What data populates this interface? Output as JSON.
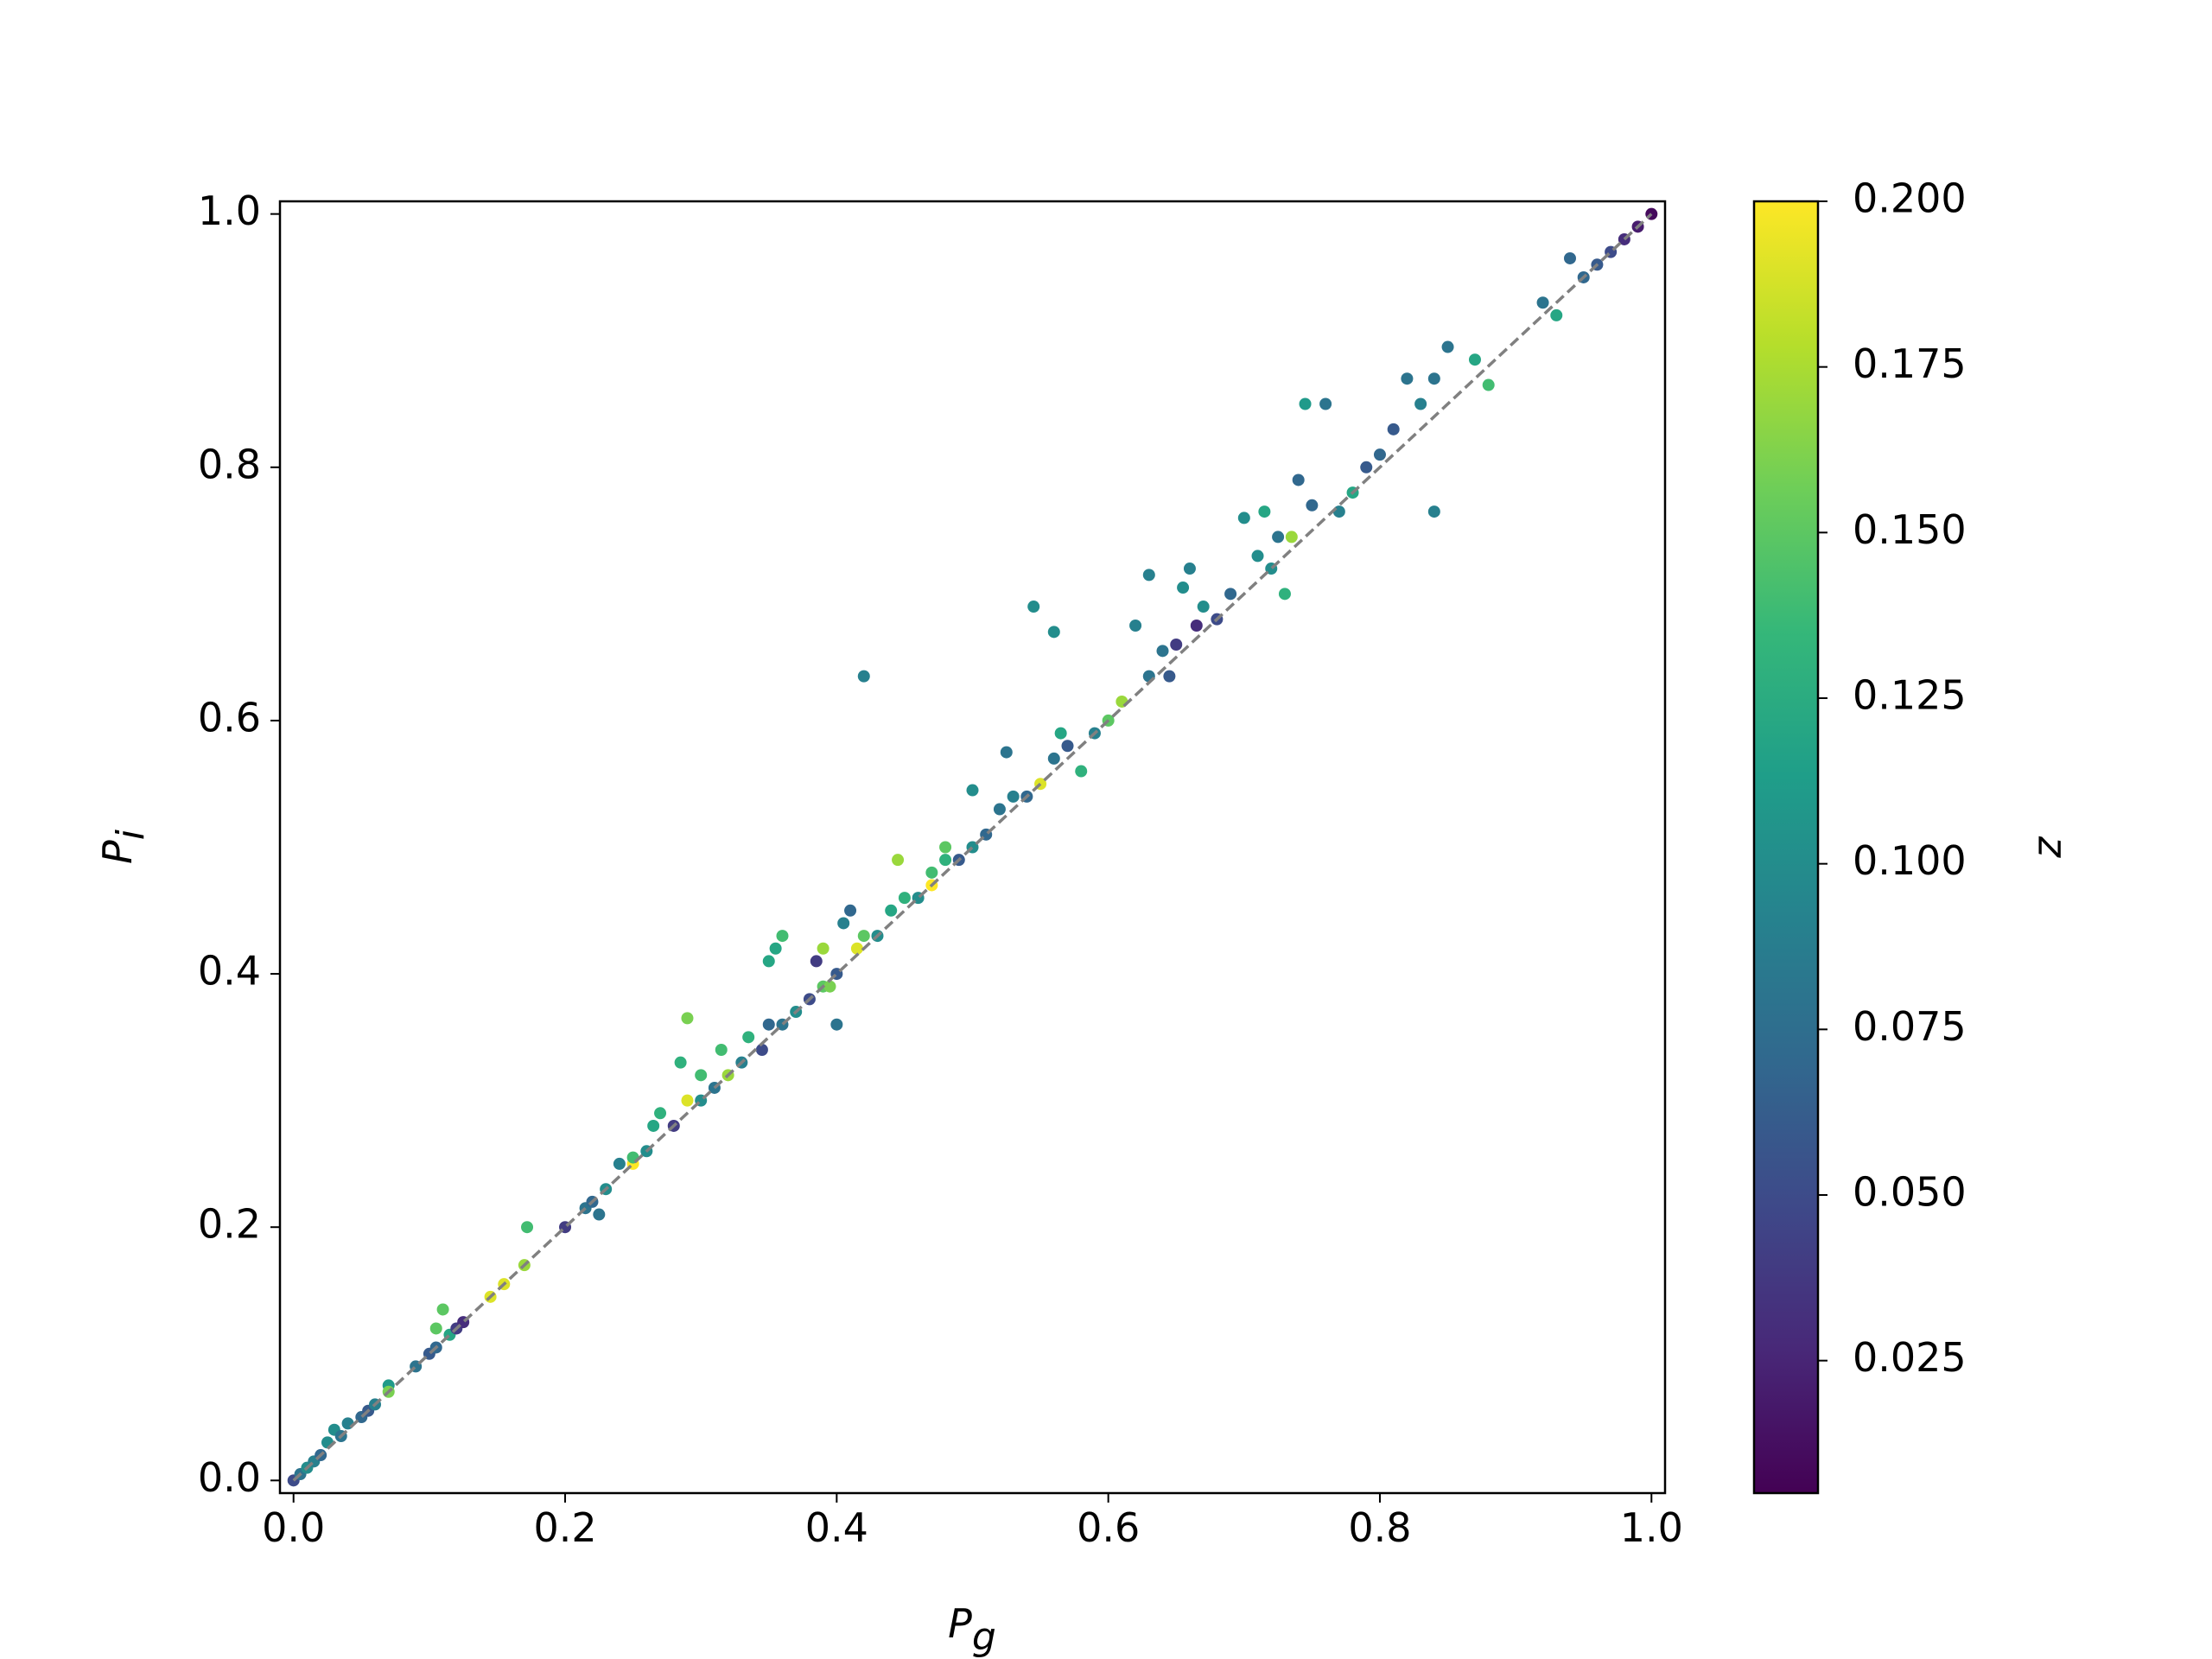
{
  "chart_data": {
    "type": "scatter",
    "xlabel": [
      "P",
      "g"
    ],
    "ylabel": [
      "P",
      "i"
    ],
    "colorbar_label": "z",
    "colormap": "viridis",
    "clim": [
      0.005,
      0.2
    ],
    "xlim": [
      -0.01,
      1.01
    ],
    "ylim": [
      -0.01,
      1.01
    ],
    "xticks": [
      {
        "value": 0,
        "label": "0.0"
      },
      0.2,
      0.4,
      0.6,
      0.8,
      {
        "value": 1,
        "label": "1.0"
      }
    ],
    "yticks": [
      {
        "value": 0,
        "label": "0.0"
      },
      0.2,
      0.4,
      0.6,
      0.8,
      {
        "value": 1,
        "label": "1.0"
      }
    ],
    "cticks": [
      0.025,
      {
        "value": 0.05,
        "label": "0.050"
      },
      0.075,
      {
        "value": 0.1,
        "label": "0.100"
      },
      0.125,
      {
        "value": 0.15,
        "label": "0.150"
      },
      0.175,
      {
        "value": 0.2,
        "label": "0.200"
      }
    ],
    "reference_line": {
      "x": [
        0,
        1
      ],
      "y": [
        0,
        1
      ],
      "color": "#808080",
      "style": "dashed"
    },
    "x": [
      0.0,
      0.005,
      0.01,
      0.015,
      0.02,
      0.025,
      0.03,
      0.035,
      0.04,
      0.05,
      0.055,
      0.06,
      0.07,
      0.07,
      0.09,
      0.1,
      0.105,
      0.105,
      0.11,
      0.115,
      0.12,
      0.125,
      0.145,
      0.155,
      0.17,
      0.172,
      0.2,
      0.215,
      0.22,
      0.225,
      0.23,
      0.24,
      0.25,
      0.25,
      0.26,
      0.265,
      0.27,
      0.28,
      0.285,
      0.29,
      0.29,
      0.3,
      0.3,
      0.31,
      0.315,
      0.32,
      0.33,
      0.335,
      0.345,
      0.35,
      0.35,
      0.355,
      0.36,
      0.36,
      0.37,
      0.38,
      0.385,
      0.39,
      0.39,
      0.395,
      0.4,
      0.4,
      0.405,
      0.41,
      0.415,
      0.42,
      0.42,
      0.43,
      0.44,
      0.445,
      0.45,
      0.46,
      0.47,
      0.47,
      0.48,
      0.48,
      0.49,
      0.5,
      0.5,
      0.51,
      0.52,
      0.525,
      0.53,
      0.54,
      0.545,
      0.55,
      0.56,
      0.56,
      0.565,
      0.57,
      0.58,
      0.59,
      0.6,
      0.61,
      0.62,
      0.63,
      0.63,
      0.64,
      0.645,
      0.65,
      0.655,
      0.66,
      0.665,
      0.67,
      0.68,
      0.69,
      0.7,
      0.71,
      0.715,
      0.72,
      0.725,
      0.73,
      0.735,
      0.74,
      0.745,
      0.75,
      0.76,
      0.77,
      0.78,
      0.79,
      0.8,
      0.81,
      0.82,
      0.83,
      0.84,
      0.84,
      0.85,
      0.87,
      0.88,
      0.92,
      0.93,
      0.94,
      0.95,
      0.96,
      0.97,
      0.98,
      0.99,
      1.0
    ],
    "y": [
      0.0,
      0.005,
      0.01,
      0.015,
      0.02,
      0.03,
      0.04,
      0.035,
      0.045,
      0.05,
      0.055,
      0.06,
      0.075,
      0.07,
      0.09,
      0.1,
      0.105,
      0.12,
      0.135,
      0.115,
      0.12,
      0.125,
      0.145,
      0.155,
      0.17,
      0.2,
      0.2,
      0.215,
      0.22,
      0.21,
      0.23,
      0.25,
      0.25,
      0.255,
      0.26,
      0.28,
      0.29,
      0.28,
      0.33,
      0.365,
      0.3,
      0.3,
      0.32,
      0.31,
      0.34,
      0.32,
      0.33,
      0.35,
      0.34,
      0.36,
      0.41,
      0.42,
      0.43,
      0.36,
      0.37,
      0.38,
      0.41,
      0.39,
      0.42,
      0.39,
      0.4,
      0.36,
      0.44,
      0.45,
      0.42,
      0.635,
      0.43,
      0.43,
      0.45,
      0.49,
      0.46,
      0.46,
      0.48,
      0.47,
      0.49,
      0.5,
      0.49,
      0.5,
      0.545,
      0.51,
      0.53,
      0.575,
      0.54,
      0.54,
      0.69,
      0.55,
      0.67,
      0.57,
      0.59,
      0.58,
      0.56,
      0.59,
      0.6,
      0.615,
      0.675,
      0.635,
      0.715,
      0.655,
      0.635,
      0.66,
      0.705,
      0.72,
      0.675,
      0.69,
      0.68,
      0.7,
      0.76,
      0.73,
      0.765,
      0.72,
      0.745,
      0.7,
      0.745,
      0.79,
      0.85,
      0.77,
      0.85,
      0.765,
      0.78,
      0.8,
      0.81,
      0.83,
      0.87,
      0.85,
      0.765,
      0.87,
      0.895,
      0.885,
      0.865,
      0.93,
      0.92,
      0.965,
      0.95,
      0.96,
      0.97,
      0.98,
      0.99,
      1.0
    ],
    "z": [
      0.05,
      0.08,
      0.1,
      0.09,
      0.07,
      0.1,
      0.1,
      0.08,
      0.09,
      0.07,
      0.06,
      0.09,
      0.11,
      0.16,
      0.08,
      0.06,
      0.07,
      0.15,
      0.15,
      0.12,
      0.04,
      0.03,
      0.19,
      0.19,
      0.17,
      0.14,
      0.04,
      0.08,
      0.07,
      0.08,
      0.1,
      0.09,
      0.2,
      0.14,
      0.1,
      0.12,
      0.13,
      0.04,
      0.13,
      0.16,
      0.19,
      0.1,
      0.14,
      0.08,
      0.14,
      0.17,
      0.09,
      0.13,
      0.05,
      0.07,
      0.12,
      0.12,
      0.14,
      0.08,
      0.1,
      0.05,
      0.04,
      0.15,
      0.17,
      0.16,
      0.06,
      0.08,
      0.09,
      0.07,
      0.19,
      0.09,
      0.15,
      0.1,
      0.12,
      0.17,
      0.13,
      0.1,
      0.14,
      0.2,
      0.13,
      0.15,
      0.06,
      0.1,
      0.1,
      0.07,
      0.08,
      0.08,
      0.09,
      0.07,
      0.1,
      0.19,
      0.1,
      0.08,
      0.12,
      0.06,
      0.13,
      0.09,
      0.15,
      0.17,
      0.09,
      0.08,
      0.09,
      0.08,
      0.06,
      0.04,
      0.1,
      0.09,
      0.03,
      0.1,
      0.05,
      0.07,
      0.1,
      0.1,
      0.12,
      0.1,
      0.08,
      0.13,
      0.17,
      0.07,
      0.11,
      0.07,
      0.08,
      0.09,
      0.12,
      0.06,
      0.07,
      0.06,
      0.08,
      0.09,
      0.09,
      0.08,
      0.08,
      0.12,
      0.14,
      0.08,
      0.12,
      0.07,
      0.07,
      0.06,
      0.05,
      0.03,
      0.02,
      0.01
    ]
  }
}
